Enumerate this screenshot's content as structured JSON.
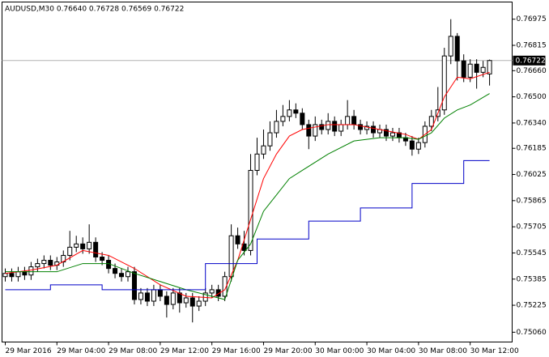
{
  "chart_data": {
    "type": "candlestick",
    "title": "AUDUSD,M30  0.76640 0.76728 0.76569 0.76722",
    "up_color": "#ffffff",
    "down_color": "#000000",
    "open": [
      0.754,
      0.7542,
      0.754,
      0.7543,
      0.7541,
      0.7546,
      0.7548,
      0.755,
      0.7547,
      0.7549,
      0.7553,
      0.7558,
      0.756,
      0.7557,
      0.7561,
      0.7552,
      0.755,
      0.7545,
      0.7542,
      0.754,
      0.7543,
      0.7526,
      0.753,
      0.7525,
      0.7532,
      0.7528,
      0.7523,
      0.753,
      0.7524,
      0.7527,
      0.7522,
      0.7525,
      0.753,
      0.7532,
      0.7528,
      0.754,
      0.7565,
      0.756,
      0.7556,
      0.7605,
      0.7615,
      0.762,
      0.7628,
      0.7635,
      0.7638,
      0.7642,
      0.764,
      0.7633,
      0.7626,
      0.7633,
      0.763,
      0.7635,
      0.7629,
      0.7633,
      0.7638,
      0.7633,
      0.763,
      0.7632,
      0.7628,
      0.763,
      0.7626,
      0.7628,
      0.7625,
      0.7623,
      0.7618,
      0.7622,
      0.7632,
      0.7638,
      0.7642,
      0.7675,
      0.7687,
      0.7672,
      0.7662,
      0.767,
      0.7665,
      0.7664
    ],
    "high": [
      0.7545,
      0.7545,
      0.7546,
      0.7546,
      0.7549,
      0.7551,
      0.7553,
      0.7553,
      0.7552,
      0.7556,
      0.7568,
      0.7565,
      0.7564,
      0.7572,
      0.7564,
      0.7555,
      0.7553,
      0.7548,
      0.7545,
      0.7546,
      0.7546,
      0.7533,
      0.7533,
      0.7535,
      0.7535,
      0.7531,
      0.7533,
      0.7533,
      0.753,
      0.753,
      0.7528,
      0.7533,
      0.7535,
      0.7535,
      0.7543,
      0.7572,
      0.757,
      0.7568,
      0.7615,
      0.7625,
      0.763,
      0.7635,
      0.7642,
      0.7645,
      0.7648,
      0.7646,
      0.7643,
      0.7636,
      0.7638,
      0.7636,
      0.764,
      0.7638,
      0.7636,
      0.7648,
      0.7642,
      0.7636,
      0.7635,
      0.7635,
      0.7633,
      0.7633,
      0.7631,
      0.7631,
      0.7628,
      0.7626,
      0.7625,
      0.7635,
      0.7642,
      0.7656,
      0.768,
      0.76975,
      0.7689,
      0.7676,
      0.7673,
      0.7673,
      0.7672,
      0.76728
    ],
    "low": [
      0.7537,
      0.7537,
      0.7537,
      0.7538,
      0.7538,
      0.7543,
      0.7545,
      0.7544,
      0.7544,
      0.7546,
      0.755,
      0.7555,
      0.7554,
      0.7554,
      0.7549,
      0.7547,
      0.7542,
      0.7539,
      0.7537,
      0.7537,
      0.7523,
      0.7523,
      0.7522,
      0.7522,
      0.7525,
      0.7515,
      0.752,
      0.7518,
      0.7521,
      0.7512,
      0.7519,
      0.7522,
      0.7527,
      0.7525,
      0.7525,
      0.7537,
      0.7557,
      0.7553,
      0.7553,
      0.7602,
      0.7612,
      0.7617,
      0.7625,
      0.7632,
      0.7635,
      0.7637,
      0.763,
      0.7618,
      0.7623,
      0.7627,
      0.7627,
      0.7626,
      0.7626,
      0.763,
      0.763,
      0.7627,
      0.7627,
      0.7625,
      0.7625,
      0.7623,
      0.7623,
      0.7622,
      0.762,
      0.7614,
      0.7615,
      0.7619,
      0.7629,
      0.7635,
      0.7639,
      0.767,
      0.766,
      0.7659,
      0.7659,
      0.7655,
      0.7662,
      0.76569
    ],
    "close": [
      0.7542,
      0.754,
      0.7543,
      0.7541,
      0.7546,
      0.7548,
      0.755,
      0.7547,
      0.7549,
      0.7553,
      0.7558,
      0.756,
      0.7557,
      0.7561,
      0.7552,
      0.755,
      0.7545,
      0.7542,
      0.754,
      0.7543,
      0.7526,
      0.753,
      0.7525,
      0.7532,
      0.7528,
      0.7523,
      0.753,
      0.7524,
      0.7527,
      0.7522,
      0.7525,
      0.753,
      0.7532,
      0.7528,
      0.754,
      0.7565,
      0.756,
      0.7556,
      0.7605,
      0.7615,
      0.762,
      0.7628,
      0.7635,
      0.7638,
      0.7642,
      0.764,
      0.7633,
      0.7626,
      0.7633,
      0.763,
      0.7635,
      0.7629,
      0.7633,
      0.7638,
      0.7633,
      0.763,
      0.7632,
      0.7628,
      0.763,
      0.7626,
      0.7628,
      0.7625,
      0.7623,
      0.7618,
      0.7622,
      0.7632,
      0.7638,
      0.7642,
      0.7675,
      0.7687,
      0.7672,
      0.7662,
      0.767,
      0.7665,
      0.7668,
      0.76722
    ],
    "series": [
      {
        "color": "#ff0000",
        "x": [
          0,
          4,
          8,
          12,
          16,
          20,
          24,
          28,
          32,
          34,
          36,
          38,
          40,
          42,
          44,
          46,
          50,
          54,
          58,
          62,
          64,
          66,
          68,
          70,
          72,
          75
        ],
        "values": [
          0.7542,
          0.7544,
          0.7547,
          0.7556,
          0.7553,
          0.7545,
          0.7535,
          0.7528,
          0.7527,
          0.7532,
          0.755,
          0.7575,
          0.76,
          0.7615,
          0.7626,
          0.763,
          0.7633,
          0.7633,
          0.763,
          0.7627,
          0.7624,
          0.763,
          0.765,
          0.7662,
          0.7661,
          0.7665
        ]
      },
      {
        "color": "#008000",
        "x": [
          0,
          8,
          12,
          16,
          20,
          24,
          28,
          32,
          34,
          36,
          38,
          40,
          42,
          44,
          46,
          50,
          54,
          58,
          62,
          64,
          66,
          68,
          70,
          72,
          75
        ],
        "values": [
          0.7543,
          0.7543,
          0.7548,
          0.7548,
          0.7542,
          0.7537,
          0.7532,
          0.7528,
          0.7526,
          0.755,
          0.756,
          0.758,
          0.759,
          0.76,
          0.7605,
          0.7615,
          0.7623,
          0.7625,
          0.7625,
          0.7624,
          0.7628,
          0.7637,
          0.7642,
          0.7645,
          0.7652
        ]
      },
      {
        "color": "#0000c8",
        "step": true,
        "x": [
          0,
          7,
          15,
          31,
          39,
          47,
          55,
          63,
          71
        ],
        "values": [
          0.7532,
          0.7535,
          0.7532,
          0.7548,
          0.7563,
          0.7574,
          0.7582,
          0.7597,
          0.7611
        ]
      }
    ],
    "xlim": [
      -0.5,
      78.5
    ],
    "xticks": [
      {
        "value": 0,
        "label": "29 Mar 2016"
      },
      {
        "value": 8,
        "label": "29 Mar 04:00"
      },
      {
        "value": 16,
        "label": "29 Mar 08:00"
      },
      {
        "value": 24,
        "label": "29 Mar 12:00"
      },
      {
        "value": 32,
        "label": "29 Mar 16:00"
      },
      {
        "value": 40,
        "label": "29 Mar 20:00"
      },
      {
        "value": 48,
        "label": "30 Mar 00:00"
      },
      {
        "value": 56,
        "label": "30 Mar 04:00"
      },
      {
        "value": 64,
        "label": "30 Mar 08:00"
      },
      {
        "value": 72,
        "label": "30 Mar 12:00"
      }
    ],
    "ylim": [
      0.75,
      0.7708
    ],
    "yticks": [
      {
        "value": 0.76975,
        "label": "0.76975"
      },
      {
        "value": 0.76815,
        "label": "0.76815"
      },
      {
        "value": 0.7666,
        "label": "0.76660"
      },
      {
        "value": 0.765,
        "label": "0.76500"
      },
      {
        "value": 0.7634,
        "label": "0.76340"
      },
      {
        "value": 0.76185,
        "label": "0.76185"
      },
      {
        "value": 0.76025,
        "label": "0.76025"
      },
      {
        "value": 0.75865,
        "label": "0.75865"
      },
      {
        "value": 0.75705,
        "label": "0.75705"
      },
      {
        "value": 0.75545,
        "label": "0.75545"
      },
      {
        "value": 0.75385,
        "label": "0.75385"
      },
      {
        "value": 0.75225,
        "label": "0.75225"
      },
      {
        "value": 0.7506,
        "label": "0.75060"
      }
    ],
    "last_price": {
      "value": 0.76722,
      "label": "0.76722"
    },
    "grid": false
  }
}
